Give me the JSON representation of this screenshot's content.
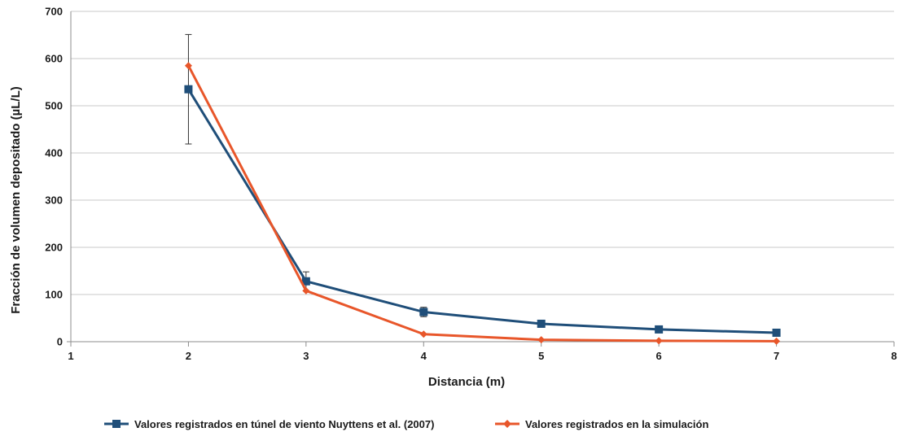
{
  "chart_data": {
    "type": "line",
    "title": "",
    "xlabel": "Distancia  (m)",
    "ylabel": "Fracción de volumen depositado  (µL/L)",
    "xlim": [
      1,
      8
    ],
    "ylim": [
      0,
      700
    ],
    "xticks": [
      "1",
      "2",
      "3",
      "4",
      "5",
      "6",
      "7",
      "8"
    ],
    "yticks": [
      "0",
      "100",
      "200",
      "300",
      "400",
      "500",
      "600",
      "700"
    ],
    "grid": true,
    "legend_position": "bottom",
    "series": [
      {
        "name": "Valores registrados en túnel de viento Nuyttens et al. (2007)",
        "color": "#1f4e79",
        "marker": "square",
        "x": [
          2,
          3,
          4,
          5,
          6,
          7
        ],
        "y": [
          535,
          128,
          63,
          38,
          26,
          19
        ],
        "error": [
          116,
          20,
          10,
          0,
          0,
          0
        ]
      },
      {
        "name": "Valores registrados en la simulación",
        "color": "#e8562a",
        "marker": "diamond",
        "x": [
          2,
          3,
          4,
          5,
          6,
          7
        ],
        "y": [
          585,
          108,
          16,
          4,
          2,
          1
        ]
      }
    ]
  }
}
